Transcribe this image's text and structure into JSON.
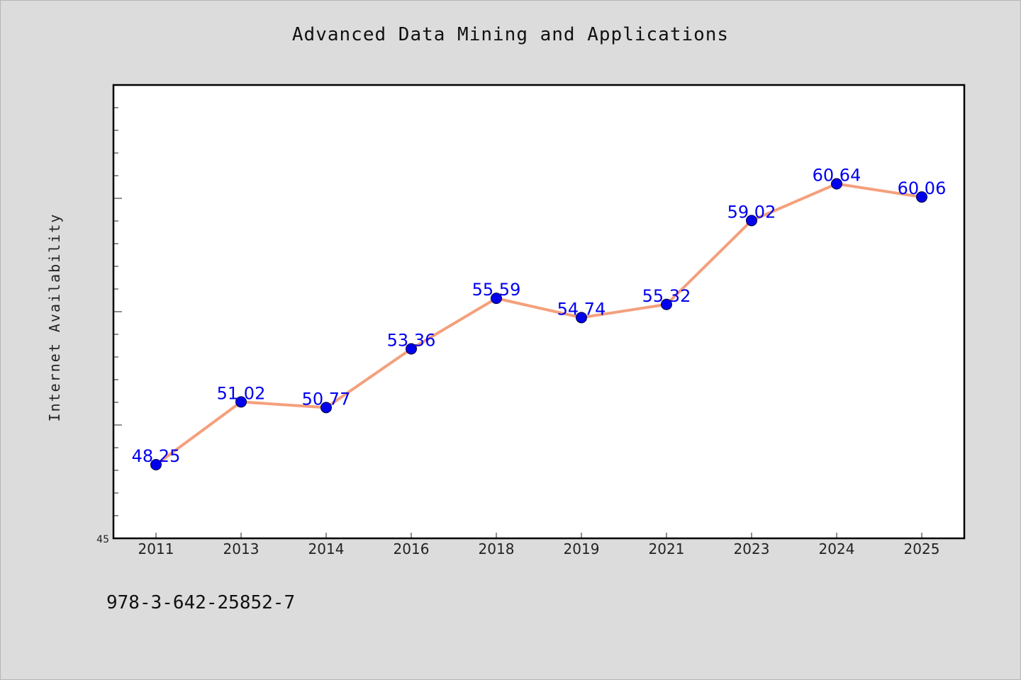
{
  "chart_data": {
    "type": "line",
    "title": "Advanced Data Mining and Applications",
    "ylabel": "Internet Availability",
    "xlabel": "",
    "categories": [
      "2011",
      "2013",
      "2014",
      "2016",
      "2018",
      "2019",
      "2021",
      "2023",
      "2024",
      "2025"
    ],
    "series": [
      {
        "values": [
          48.25,
          51.02,
          50.77,
          53.36,
          55.59,
          54.74,
          55.32,
          59.02,
          60.64,
          60.06
        ]
      }
    ],
    "value_labels": [
      "48.25",
      "51.02",
      "50.77",
      "53.36",
      "55.59",
      "54.74",
      "55.32",
      "59.02",
      "60.64",
      "60.06"
    ],
    "ylim": [
      45,
      65
    ],
    "y_tick_label": "45",
    "grid": false,
    "line_color": "#f4a07c",
    "marker_color": "#0000ee",
    "label_color": "#0000ee",
    "footer_text": "978-3-642-25852-7"
  }
}
